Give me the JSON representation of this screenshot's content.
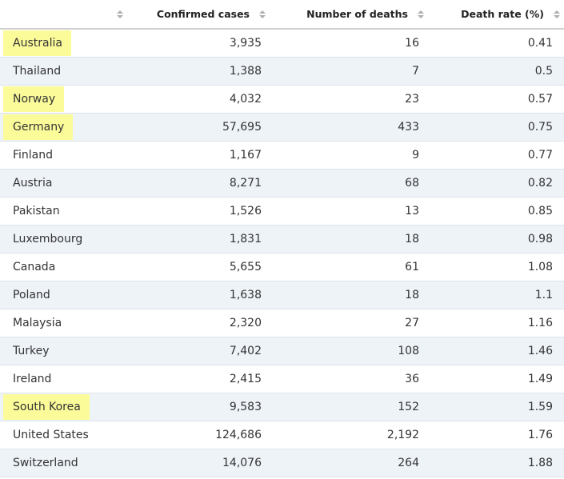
{
  "header": {
    "columns": [
      {
        "label": ""
      },
      {
        "label": "Confirmed cases"
      },
      {
        "label": "Number of deaths"
      },
      {
        "label": "Death rate (%)"
      }
    ]
  },
  "rows": [
    {
      "country": "Australia",
      "cases": "3,935",
      "deaths": "16",
      "rate": "0.41",
      "highlighted": true
    },
    {
      "country": "Thailand",
      "cases": "1,388",
      "deaths": "7",
      "rate": "0.5",
      "highlighted": false
    },
    {
      "country": "Norway",
      "cases": "4,032",
      "deaths": "23",
      "rate": "0.57",
      "highlighted": true
    },
    {
      "country": "Germany",
      "cases": "57,695",
      "deaths": "433",
      "rate": "0.75",
      "highlighted": true
    },
    {
      "country": "Finland",
      "cases": "1,167",
      "deaths": "9",
      "rate": "0.77",
      "highlighted": false
    },
    {
      "country": "Austria",
      "cases": "8,271",
      "deaths": "68",
      "rate": "0.82",
      "highlighted": false
    },
    {
      "country": "Pakistan",
      "cases": "1,526",
      "deaths": "13",
      "rate": "0.85",
      "highlighted": false
    },
    {
      "country": "Luxembourg",
      "cases": "1,831",
      "deaths": "18",
      "rate": "0.98",
      "highlighted": false
    },
    {
      "country": "Canada",
      "cases": "5,655",
      "deaths": "61",
      "rate": "1.08",
      "highlighted": false
    },
    {
      "country": "Poland",
      "cases": "1,638",
      "deaths": "18",
      "rate": "1.1",
      "highlighted": false
    },
    {
      "country": "Malaysia",
      "cases": "2,320",
      "deaths": "27",
      "rate": "1.16",
      "highlighted": false
    },
    {
      "country": "Turkey",
      "cases": "7,402",
      "deaths": "108",
      "rate": "1.46",
      "highlighted": false
    },
    {
      "country": "Ireland",
      "cases": "2,415",
      "deaths": "36",
      "rate": "1.49",
      "highlighted": false
    },
    {
      "country": "South Korea",
      "cases": "9,583",
      "deaths": "152",
      "rate": "1.59",
      "highlighted": true
    },
    {
      "country": "United States",
      "cases": "124,686",
      "deaths": "2,192",
      "rate": "1.76",
      "highlighted": false
    },
    {
      "country": "Switzerland",
      "cases": "14,076",
      "deaths": "264",
      "rate": "1.88",
      "highlighted": false
    }
  ],
  "colors": {
    "highlight": "#fbfb9a",
    "row_stripe": "#eef3f8",
    "sort_icon": "#b0b0b0"
  },
  "icons": {
    "sort": "sort-both-icon"
  }
}
